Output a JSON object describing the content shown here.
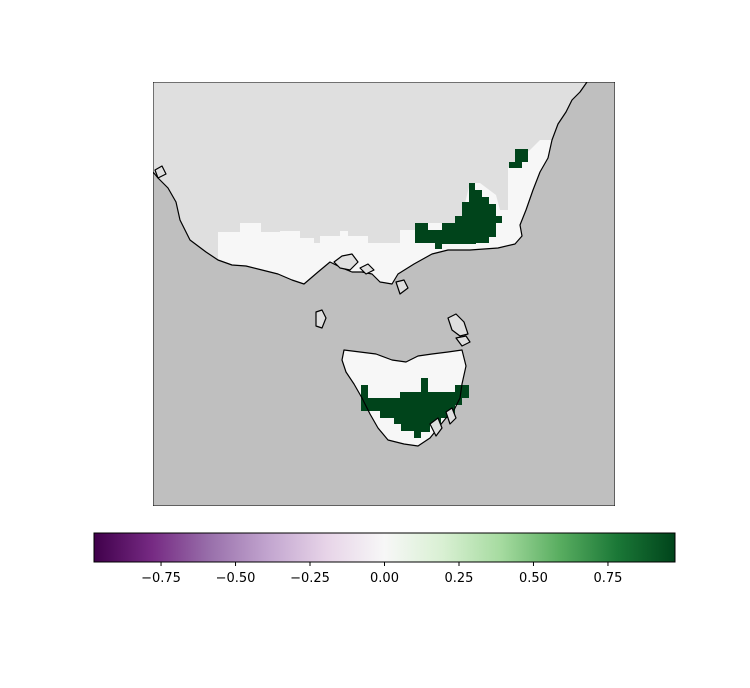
{
  "map": {
    "colors": {
      "ocean": "#bfbfbf",
      "land_nodata": "#dfdfdf",
      "near_zero": "#f7f7f7",
      "high": "#00441b",
      "coastline": "#000000"
    },
    "cell_values": {
      "near_zero": 0.0,
      "high": 1.0
    }
  },
  "colorbar": {
    "vmin": -0.975,
    "vmax": 0.975,
    "colormap": "PRGn",
    "stops": [
      "#40004b",
      "#762a83",
      "#9970ab",
      "#c2a5cf",
      "#e7d4e8",
      "#f7f7f7",
      "#d9f0d3",
      "#a6dba0",
      "#5aae61",
      "#1b7837",
      "#00441b"
    ],
    "ticks": [
      {
        "value": -0.75,
        "label": "−0.75"
      },
      {
        "value": -0.5,
        "label": "−0.50"
      },
      {
        "value": -0.25,
        "label": "−0.25"
      },
      {
        "value": 0.0,
        "label": "0.00"
      },
      {
        "value": 0.25,
        "label": "0.25"
      },
      {
        "value": 0.5,
        "label": "0.50"
      },
      {
        "value": 0.75,
        "label": "0.75"
      }
    ]
  }
}
